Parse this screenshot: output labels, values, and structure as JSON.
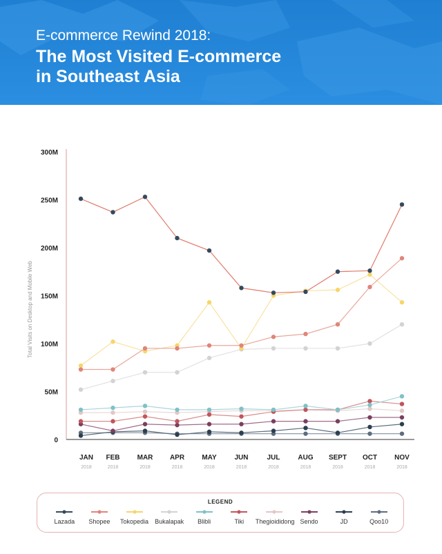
{
  "header": {
    "pretitle": "E-commerce Rewind 2018:",
    "title_line1": "The Most Visited E-commerce",
    "title_line2": "in Southeast Asia",
    "bg_color": "#2b8ee0"
  },
  "legend": {
    "title": "LEGEND"
  },
  "chart_data": {
    "type": "line",
    "ylabel": "Total Visits on Desktop and Mobile Web",
    "yticks": [
      "0",
      "50M",
      "100M",
      "150M",
      "200M",
      "250M",
      "300M"
    ],
    "ylim": [
      0,
      300
    ],
    "grid": false,
    "legend_position": "bottom",
    "categories": [
      "JAN",
      "FEB",
      "MAR",
      "APR",
      "MAY",
      "JUN",
      "JUL",
      "AUG",
      "SEPT",
      "OCT",
      "NOV"
    ],
    "years": [
      "2018",
      "2018",
      "2018",
      "2018",
      "2018",
      "2018",
      "2018",
      "2018",
      "2018",
      "2018",
      "2018"
    ],
    "series": [
      {
        "name": "Lazada",
        "color": "#34495e",
        "line": "#e07b6b",
        "values": [
          251,
          237,
          253,
          210,
          197,
          158,
          153,
          154,
          175,
          176,
          245
        ]
      },
      {
        "name": "Shopee",
        "color": "#e0857a",
        "line": "#e8a79c",
        "values": [
          73,
          73,
          95,
          95,
          98,
          98,
          107,
          110,
          120,
          159,
          189
        ]
      },
      {
        "name": "Tokopedia",
        "color": "#f7d56b",
        "line": "#f9e2a1",
        "values": [
          77,
          102,
          92,
          98,
          143,
          95,
          150,
          155,
          156,
          172,
          143
        ]
      },
      {
        "name": "Bukalapak",
        "color": "#d4d2d2",
        "line": "#e3e1e1",
        "values": [
          52,
          61,
          70,
          70,
          85,
          94,
          95,
          95,
          95,
          100,
          120
        ]
      },
      {
        "name": "Blibli",
        "color": "#7fc1c7",
        "line": "#a9d6da",
        "values": [
          31,
          33,
          35,
          31,
          31,
          32,
          31,
          35,
          31,
          36,
          45
        ]
      },
      {
        "name": "Tiki",
        "color": "#c0565c",
        "line": "#d98d8f",
        "values": [
          19,
          19,
          24,
          19,
          26,
          24,
          29,
          31,
          31,
          40,
          37
        ]
      },
      {
        "name": "Thegioididong",
        "color": "#e3c7c7",
        "line": "#ead6d6",
        "values": [
          28,
          28,
          29,
          28,
          29,
          30,
          30,
          31,
          30,
          32,
          30
        ]
      },
      {
        "name": "Sendo",
        "color": "#7b3f5e",
        "line": "#a06b86",
        "values": [
          16,
          9,
          16,
          15,
          16,
          16,
          19,
          19,
          19,
          23,
          23
        ]
      },
      {
        "name": "JD",
        "color": "#2c3e50",
        "line": "#5a6b7c",
        "values": [
          4,
          8,
          9,
          5,
          8,
          7,
          9,
          12,
          7,
          13,
          16
        ]
      },
      {
        "name": "Qoo10",
        "color": "#5d6d7e",
        "line": "#8d99a6",
        "values": [
          7,
          7,
          7,
          6,
          6,
          6,
          6,
          6,
          6,
          6,
          6
        ]
      }
    ]
  }
}
